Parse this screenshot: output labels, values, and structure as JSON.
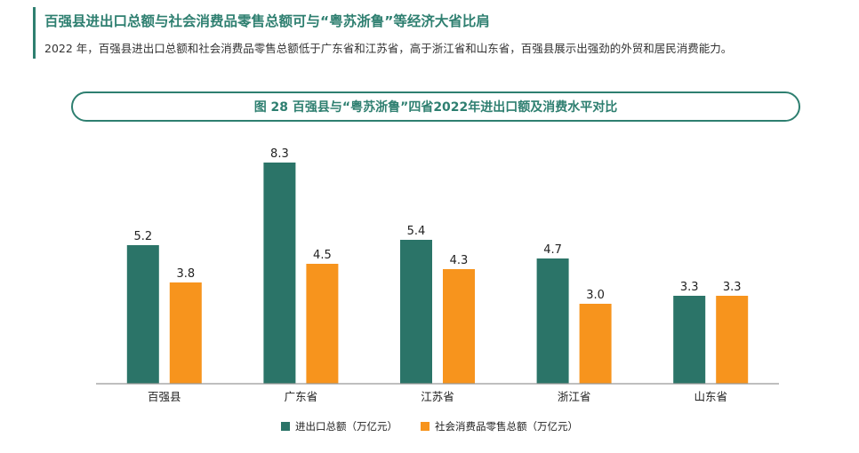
{
  "header": {
    "title": "百强县进出口总额与社会消费品零售总额可与“粤苏浙鲁”等经济大省比肩",
    "description": "2022 年，百强县进出口总额和社会消费品零售总额低于广东省和江苏省，高于浙江省和山东省，百强县展示出强劲的外贸和居民消费能力。"
  },
  "colors": {
    "accent": "#2e7f70",
    "series_1": "#2b7468",
    "series_2": "#f7941d"
  },
  "chart_data": {
    "type": "bar",
    "title": "图 28  百强县与“粤苏浙鲁”四省2022年进出口额及消费水平对比",
    "categories": [
      "百强县",
      "广东省",
      "江苏省",
      "浙江省",
      "山东省"
    ],
    "series": [
      {
        "name": "进出口总额（万亿元）",
        "values": [
          5.2,
          8.3,
          5.4,
          4.7,
          3.3
        ],
        "labels": [
          "5.2",
          "8.3",
          "5.4",
          "4.7",
          "3.3"
        ]
      },
      {
        "name": "社会消费品零售总额（万亿元）",
        "values": [
          3.8,
          4.5,
          4.3,
          3.0,
          3.3
        ],
        "labels": [
          "3.8",
          "4.5",
          "4.3",
          "3.0",
          "3.3"
        ]
      }
    ],
    "ylim": [
      0,
      9
    ],
    "grid": false,
    "legend_position": "bottom"
  }
}
